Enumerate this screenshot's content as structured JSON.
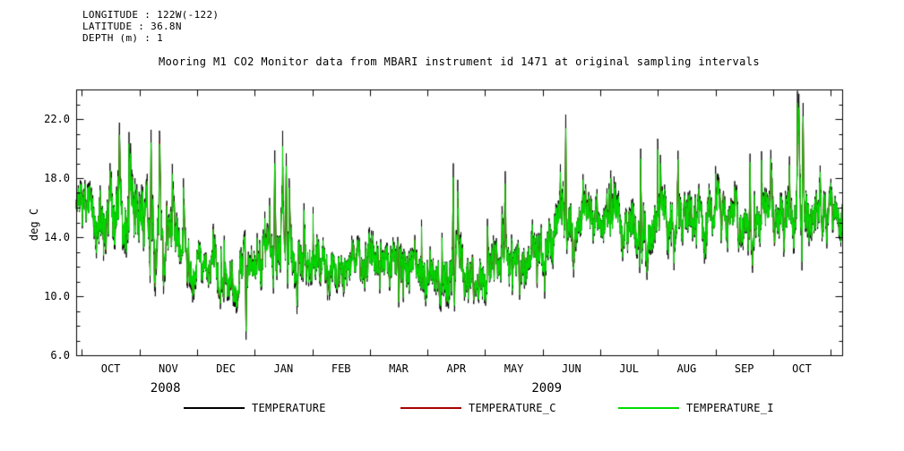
{
  "header": {
    "line1": "LONGITUDE : 122W(-122)",
    "line2": "LATITUDE : 36.8N",
    "line3": "DEPTH (m) : 1"
  },
  "title": "Mooring M1 CO2 Monitor data from MBARI instrument id 1471 at original sampling intervals",
  "chart_data": {
    "type": "line",
    "title": "Mooring M1 CO2 Monitor data from MBARI instrument id 1471 at original sampling intervals",
    "xlabel": "",
    "ylabel": "deg C",
    "ylim": [
      6.0,
      24.0
    ],
    "yticks": [
      6.0,
      10.0,
      14.0,
      18.0,
      22.0
    ],
    "y_minor_step": 1.0,
    "xlim_months": [
      0,
      13.3
    ],
    "months": [
      "OCT",
      "NOV",
      "DEC",
      "JAN",
      "FEB",
      "MAR",
      "APR",
      "MAY",
      "JUN",
      "JUL",
      "AUG",
      "SEP",
      "OCT"
    ],
    "month_boundary_offset": 0.1,
    "year_labels": [
      {
        "text": "2008",
        "t": 1.55
      },
      {
        "text": "2009",
        "t": 8.17
      }
    ],
    "grid": false,
    "legend_position": "bottom",
    "series": [
      {
        "name": "TEMPERATURE",
        "color": "#000000"
      },
      {
        "name": "TEMPERATURE_C",
        "color": "#aa0000"
      },
      {
        "name": "TEMPERATURE_I",
        "color": "#00dd00"
      }
    ],
    "trend": {
      "comment": "Envelope of the dense noisy series, read off the plot: t in month-units from left edge (OCT 2008 .. OCT 2009), mean deg C and typical half-amplitude",
      "t": [
        0.0,
        0.4,
        0.8,
        1.1,
        1.4,
        1.8,
        2.2,
        2.6,
        3.0,
        3.2,
        3.5,
        3.9,
        4.3,
        4.8,
        5.3,
        5.8,
        6.2,
        6.6,
        7.0,
        7.4,
        7.8,
        8.1,
        8.45,
        8.8,
        9.2,
        9.6,
        10.0,
        10.4,
        10.8,
        11.2,
        11.6,
        12.0,
        12.4,
        12.55,
        12.8,
        13.1,
        13.3
      ],
      "mean": [
        16.3,
        15.0,
        15.5,
        14.8,
        14.6,
        13.4,
        12.2,
        11.8,
        11.3,
        12.0,
        13.4,
        12.8,
        12.4,
        12.0,
        12.2,
        11.8,
        11.6,
        12.0,
        11.2,
        12.0,
        12.3,
        13.2,
        15.2,
        15.4,
        14.6,
        14.4,
        15.0,
        15.4,
        15.2,
        14.9,
        15.1,
        15.3,
        15.0,
        16.5,
        15.4,
        15.8,
        15.5
      ],
      "amplitude": [
        1.1,
        1.7,
        2.2,
        2.3,
        2.2,
        1.6,
        1.2,
        1.3,
        1.5,
        1.8,
        2.0,
        1.6,
        1.4,
        1.2,
        1.5,
        1.5,
        1.5,
        1.7,
        1.3,
        1.5,
        1.4,
        1.7,
        1.9,
        1.5,
        1.5,
        1.6,
        1.7,
        1.6,
        1.6,
        1.5,
        1.4,
        1.4,
        1.5,
        2.6,
        1.5,
        1.4,
        1.4
      ]
    },
    "events": [
      {
        "t": 0.75,
        "v": 21.4
      },
      {
        "t": 1.3,
        "v": 20.9
      },
      {
        "t": 1.45,
        "v": 20.6
      },
      {
        "t": 2.95,
        "v": 7.3
      },
      {
        "t": 3.45,
        "v": 19.5
      },
      {
        "t": 3.65,
        "v": 19.3
      },
      {
        "t": 5.6,
        "v": 9.4
      },
      {
        "t": 6.55,
        "v": 18.6
      },
      {
        "t": 6.9,
        "v": 9.6
      },
      {
        "t": 7.45,
        "v": 18.1
      },
      {
        "t": 7.7,
        "v": 9.9
      },
      {
        "t": 8.5,
        "v": 21.9
      },
      {
        "t": 9.8,
        "v": 19.7
      },
      {
        "t": 10.45,
        "v": 19.6
      },
      {
        "t": 11.7,
        "v": 19.4
      },
      {
        "t": 12.55,
        "v": 23.3
      },
      {
        "t": 12.62,
        "v": 22.7
      }
    ],
    "noise_seed": 7,
    "samples": 4000
  },
  "legend": {
    "items": [
      {
        "label": "TEMPERATURE",
        "color": "#000000"
      },
      {
        "label": "TEMPERATURE_C",
        "color": "#aa0000"
      },
      {
        "label": "TEMPERATURE_I",
        "color": "#00dd00"
      }
    ]
  }
}
